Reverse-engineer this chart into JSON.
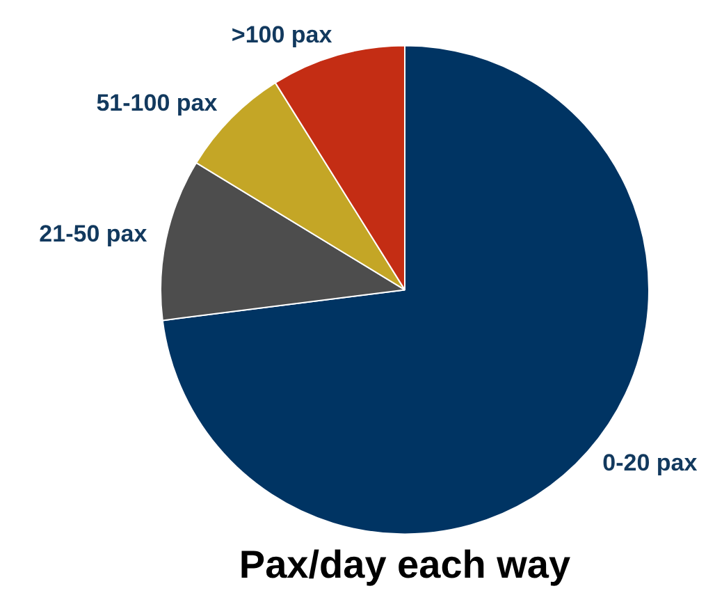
{
  "chart_data": {
    "type": "pie",
    "title": "Pax/day each way",
    "categories": [
      "0-20 pax",
      "21-50 pax",
      "51-100 pax",
      ">100 pax"
    ],
    "values": [
      73,
      10.7,
      7.4,
      8.9
    ],
    "colors": [
      "#003463",
      "#4d4d4d",
      "#c4a626",
      "#c42d14"
    ],
    "legend": false
  }
}
